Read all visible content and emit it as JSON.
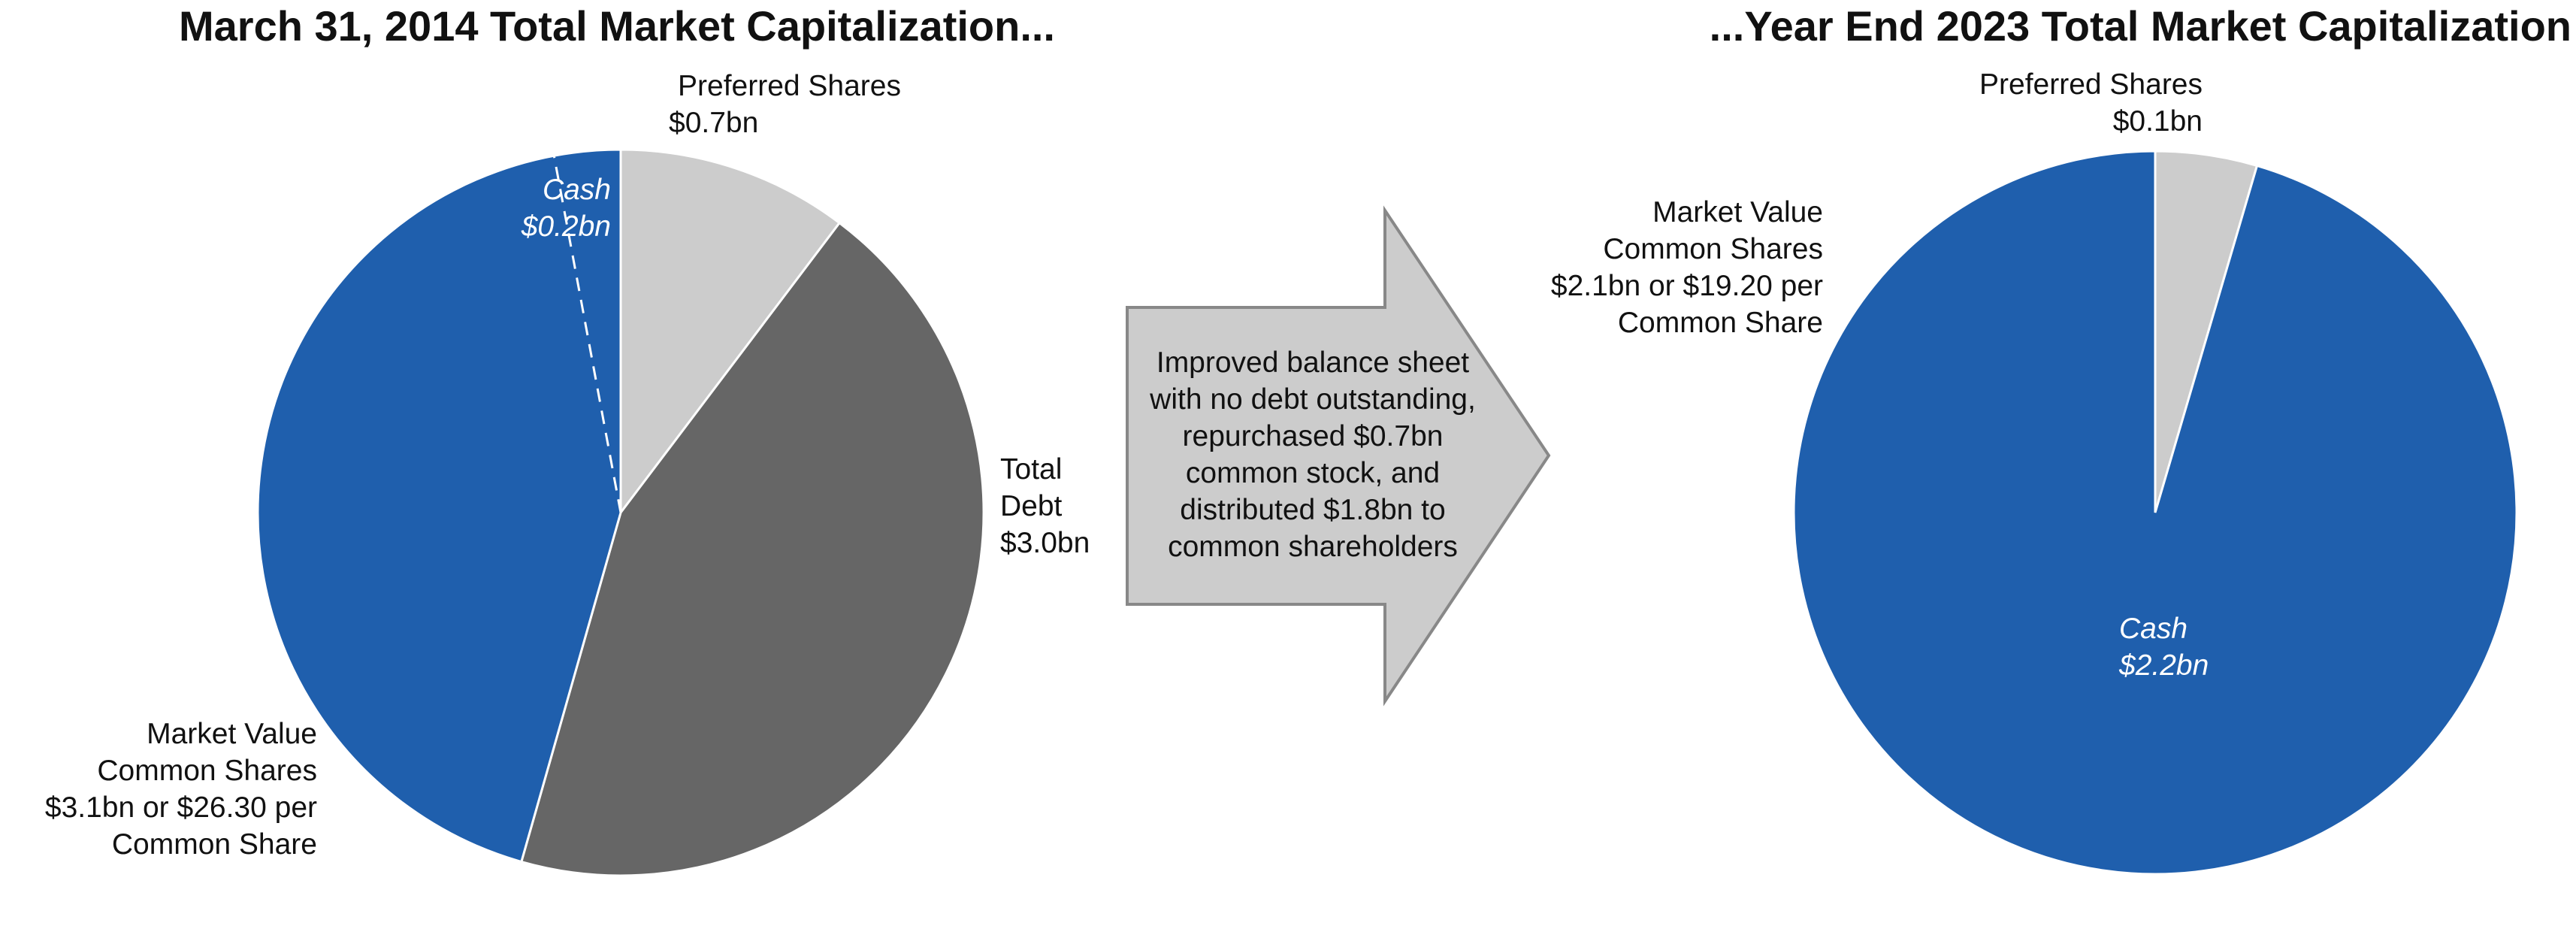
{
  "chart_data": [
    {
      "type": "pie",
      "title": "March 31, 2014 Total Market Capitalization...",
      "categories": [
        "Preferred Shares",
        "Total Debt",
        "Market Value Common Shares"
      ],
      "values": [
        0.7,
        3.0,
        3.1
      ],
      "value_labels": [
        "$0.7bn",
        "$3.0bn",
        "$3.1bn or $26.30 per Common Share"
      ],
      "colors": [
        "#cccccc",
        "#666666",
        "#1f5fad"
      ],
      "annotation": {
        "text": "Cash",
        "value": 0.2,
        "value_label": "$0.2bn"
      }
    },
    {
      "type": "pie",
      "title": "...Year End 2023 Total Market Capitalization",
      "categories": [
        "Preferred Shares",
        "Market Value Common Shares"
      ],
      "values": [
        0.1,
        2.1
      ],
      "value_labels": [
        "$0.1bn",
        "$2.1bn or $19.20 per Common Share"
      ],
      "colors": [
        "#cccccc",
        "#1f5fad"
      ],
      "annotation": {
        "text": "Cash",
        "value": 2.2,
        "value_label": "$2.2bn"
      }
    }
  ],
  "arrow_note": "Improved balance sheet with no debt outstanding, repurchased $0.7bn common stock, and distributed $1.8bn to common shareholders"
}
